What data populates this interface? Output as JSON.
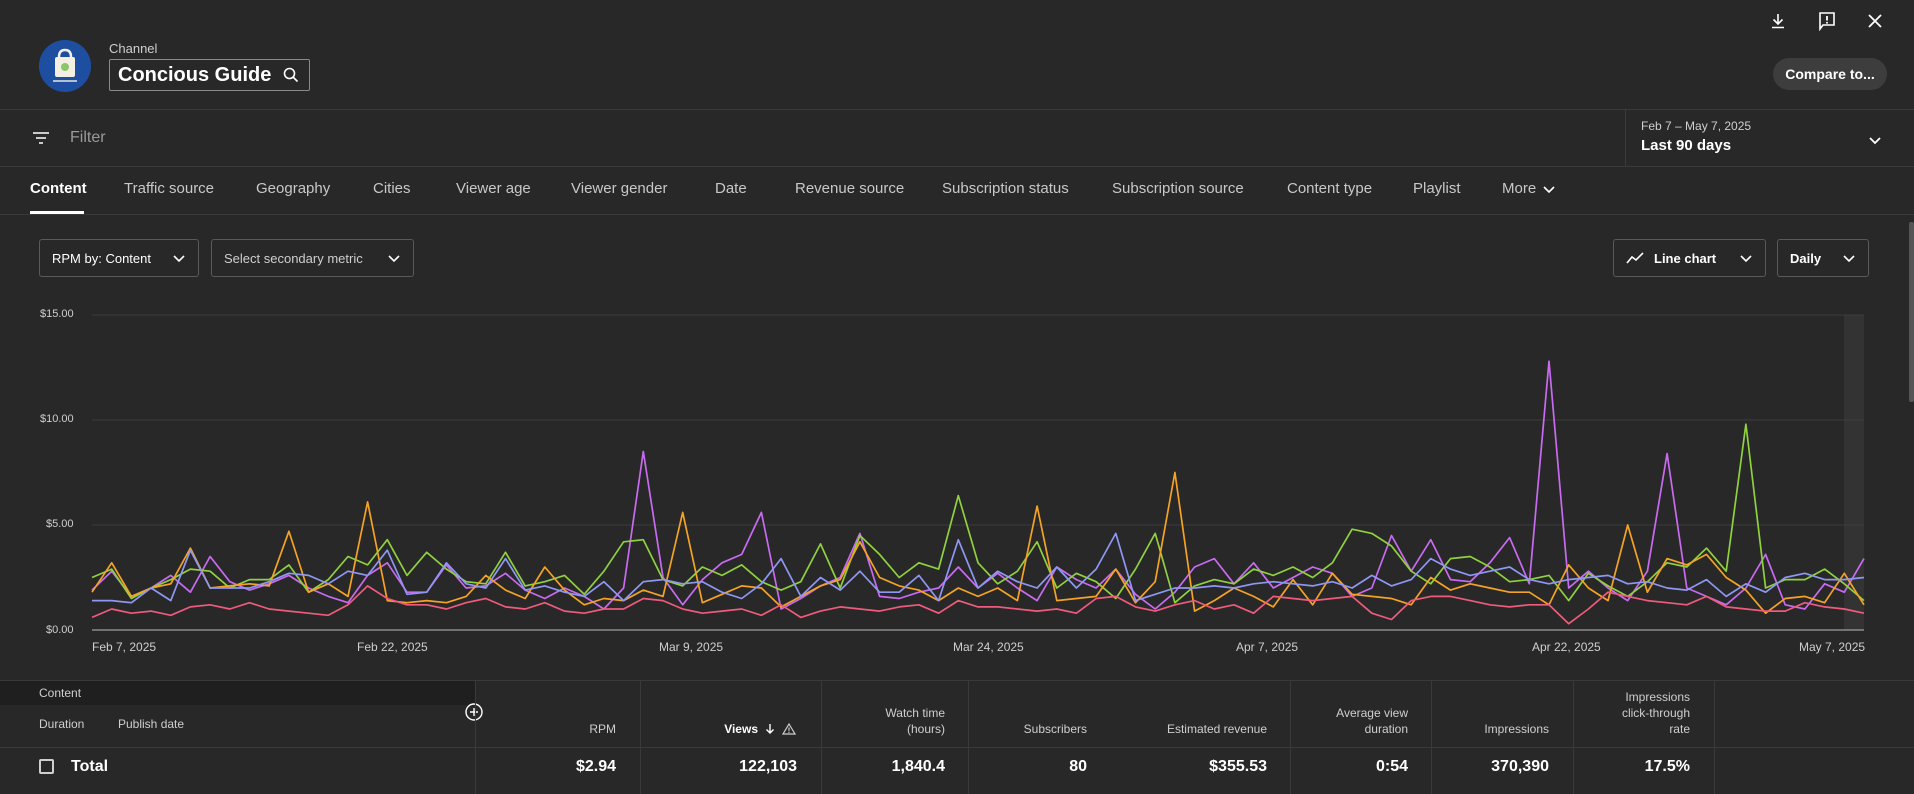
{
  "header": {
    "channel_label": "Channel",
    "channel_name": "Concious Guide",
    "compare_label": "Compare to..."
  },
  "filter": {
    "placeholder": "Filter"
  },
  "date": {
    "range": "Feb 7 – May 7, 2025",
    "period": "Last 90 days"
  },
  "tabs": [
    "Content",
    "Traffic source",
    "Geography",
    "Cities",
    "Viewer age",
    "Viewer gender",
    "Date",
    "Revenue source",
    "Subscription status",
    "Subscription source",
    "Content type",
    "Playlist",
    "More"
  ],
  "controls": {
    "primary_metric": "RPM by: Content",
    "secondary_metric": "Select secondary metric",
    "chart_type": "Line chart",
    "granularity": "Daily"
  },
  "chart_data": {
    "type": "line",
    "y_ticks": [
      "$15.00",
      "$10.00",
      "$5.00",
      "$0.00"
    ],
    "x_ticks": [
      "Feb 7, 2025",
      "Feb 22, 2025",
      "Mar 9, 2025",
      "Mar 24, 2025",
      "Apr 7, 2025",
      "Apr 22, 2025",
      "May 7, 2025"
    ],
    "ylim": [
      0,
      15
    ],
    "series": [
      {
        "color": "#c86bf0",
        "values": [
          1.9,
          2.8,
          1.6,
          2.0,
          2.6,
          1.8,
          3.5,
          2.3,
          1.9,
          2.2,
          2.6,
          2.0,
          1.6,
          1.3,
          2.6,
          3.2,
          1.8,
          1.8,
          3.1,
          2.0,
          2.1,
          2.7,
          1.9,
          1.5,
          2.0,
          1.6,
          1.0,
          2.0,
          8.5,
          2.5,
          1.2,
          2.4,
          3.2,
          3.6,
          5.6,
          1.0,
          1.5,
          2.1,
          2.5,
          4.6,
          1.6,
          1.5,
          1.8,
          2.0,
          3.0,
          2.0,
          2.7,
          2.0,
          1.4,
          3.0,
          2.4,
          2.0,
          2.9,
          1.7,
          1.0,
          1.8,
          3.0,
          3.4,
          2.2,
          3.2,
          2.0,
          2.5,
          3.0,
          2.7,
          1.6,
          2.0,
          4.5,
          2.8,
          4.3,
          2.4,
          2.3,
          3.2,
          4.4,
          2.2,
          12.8,
          2.0,
          2.8,
          2.0,
          1.4,
          2.8,
          8.4,
          2.0,
          1.6,
          1.2,
          2.0,
          3.6,
          1.2,
          1.0,
          2.2,
          1.8,
          3.4
        ]
      },
      {
        "color": "#8fd13f",
        "values": [
          2.5,
          2.9,
          1.5,
          2.0,
          2.4,
          2.9,
          2.8,
          2.0,
          2.4,
          2.4,
          3.1,
          1.8,
          2.4,
          3.5,
          3.1,
          4.3,
          2.6,
          3.7,
          2.9,
          2.3,
          2.2,
          3.7,
          2.1,
          2.3,
          2.6,
          1.7,
          2.8,
          4.2,
          4.3,
          2.4,
          2.1,
          3.0,
          2.6,
          3.1,
          2.3,
          1.9,
          2.3,
          4.1,
          2.0,
          4.5,
          3.6,
          2.5,
          3.2,
          2.9,
          6.4,
          3.2,
          2.2,
          2.8,
          4.2,
          2.0,
          2.7,
          2.3,
          1.5,
          2.9,
          4.6,
          1.3,
          2.1,
          2.4,
          2.2,
          2.9,
          2.6,
          3.0,
          2.5,
          3.2,
          4.8,
          4.6,
          4.0,
          2.8,
          2.2,
          3.4,
          3.5,
          3.0,
          2.3,
          2.4,
          2.6,
          1.4,
          2.7,
          2.1,
          1.6,
          2.3,
          3.2,
          3.0,
          3.9,
          2.8,
          9.8,
          2.0,
          2.4,
          2.4,
          2.9,
          2.2,
          1.4
        ]
      },
      {
        "color": "#f4a324",
        "values": [
          1.8,
          3.2,
          1.6,
          2.0,
          2.2,
          3.9,
          2.0,
          2.1,
          2.2,
          2.1,
          4.7,
          1.8,
          2.2,
          1.6,
          6.1,
          1.4,
          1.3,
          1.4,
          1.3,
          1.6,
          2.6,
          1.9,
          1.5,
          3.0,
          1.9,
          1.2,
          1.5,
          1.4,
          1.9,
          1.6,
          5.6,
          1.3,
          1.7,
          2.1,
          2.0,
          1.1,
          1.6,
          2.1,
          2.4,
          4.2,
          2.5,
          2.1,
          1.9,
          1.4,
          2.0,
          1.6,
          2.0,
          1.4,
          5.9,
          1.4,
          1.5,
          1.6,
          2.9,
          1.3,
          2.3,
          7.5,
          0.9,
          1.4,
          2.0,
          1.6,
          1.1,
          2.4,
          1.2,
          2.7,
          1.7,
          1.6,
          1.5,
          1.2,
          2.5,
          1.9,
          2.2,
          2.0,
          1.8,
          1.8,
          1.2,
          3.1,
          2.0,
          1.4,
          5.0,
          1.8,
          3.4,
          3.1,
          3.6,
          2.5,
          1.9,
          0.8,
          1.5,
          1.6,
          1.3,
          2.7,
          1.2
        ]
      },
      {
        "color": "#8e97f2",
        "values": [
          1.4,
          1.4,
          1.3,
          2.0,
          1.4,
          3.8,
          2.0,
          2.0,
          2.0,
          2.3,
          2.7,
          2.6,
          2.2,
          2.8,
          2.6,
          3.8,
          1.7,
          1.8,
          3.2,
          2.2,
          2.0,
          3.4,
          1.9,
          2.1,
          1.8,
          1.6,
          2.3,
          1.4,
          2.3,
          2.4,
          2.2,
          2.3,
          1.8,
          1.5,
          2.2,
          3.4,
          1.6,
          2.5,
          1.9,
          2.8,
          1.8,
          1.8,
          2.6,
          1.4,
          4.3,
          2.0,
          2.8,
          2.3,
          2.0,
          3.0,
          2.0,
          2.9,
          4.6,
          1.4,
          1.7,
          2.0,
          2.0,
          2.1,
          2.0,
          2.2,
          2.3,
          2.2,
          2.1,
          2.3,
          2.0,
          2.6,
          2.1,
          2.4,
          3.4,
          2.9,
          2.6,
          2.8,
          3.0,
          2.4,
          2.2,
          2.4,
          2.5,
          2.6,
          2.2,
          2.3,
          2.0,
          1.9,
          2.4,
          1.6,
          2.2,
          1.8,
          2.5,
          2.7,
          2.4,
          2.4,
          2.5
        ]
      },
      {
        "color": "#ef5b7c",
        "values": [
          0.6,
          1.0,
          0.8,
          0.9,
          0.7,
          1.1,
          1.2,
          1.0,
          1.3,
          1.0,
          0.9,
          0.8,
          0.7,
          1.2,
          2.1,
          1.5,
          1.2,
          1.2,
          1.0,
          1.3,
          1.5,
          1.1,
          1.0,
          1.3,
          0.9,
          0.8,
          1.0,
          1.0,
          1.5,
          1.4,
          1.0,
          0.8,
          0.9,
          1.0,
          0.7,
          1.2,
          0.6,
          0.9,
          1.1,
          1.0,
          0.9,
          1.1,
          1.2,
          0.8,
          1.4,
          1.1,
          1.1,
          1.0,
          0.9,
          1.0,
          0.8,
          1.5,
          1.6,
          1.1,
          0.9,
          1.2,
          1.4,
          1.0,
          1.2,
          0.8,
          1.6,
          1.5,
          1.4,
          1.5,
          1.6,
          0.8,
          0.5,
          1.4,
          1.6,
          1.6,
          1.4,
          1.2,
          1.1,
          1.2,
          1.2,
          0.3,
          1.0,
          1.8,
          1.6,
          1.4,
          1.3,
          1.2,
          1.6,
          1.1,
          1.0,
          0.9,
          0.9,
          1.3,
          1.1,
          1.0,
          0.8
        ]
      }
    ]
  },
  "table": {
    "group_label": "Content",
    "sub_headers": [
      "Duration",
      "Publish date"
    ],
    "columns": [
      {
        "label_lines": [
          "RPM"
        ]
      },
      {
        "label_lines": [
          "Views"
        ]
      },
      {
        "label_lines": [
          "Watch time",
          "(hours)"
        ]
      },
      {
        "label_lines": [
          "Subscribers"
        ]
      },
      {
        "label_lines": [
          "Estimated revenue"
        ]
      },
      {
        "label_lines": [
          "Average view",
          "duration"
        ]
      },
      {
        "label_lines": [
          "Impressions"
        ]
      },
      {
        "label_lines": [
          "Impressions",
          "click-through",
          "rate"
        ]
      }
    ],
    "total": {
      "label": "Total",
      "values": [
        "$2.94",
        "122,103",
        "1,840.4",
        "80",
        "$355.53",
        "0:54",
        "370,390",
        "17.5%"
      ]
    }
  }
}
